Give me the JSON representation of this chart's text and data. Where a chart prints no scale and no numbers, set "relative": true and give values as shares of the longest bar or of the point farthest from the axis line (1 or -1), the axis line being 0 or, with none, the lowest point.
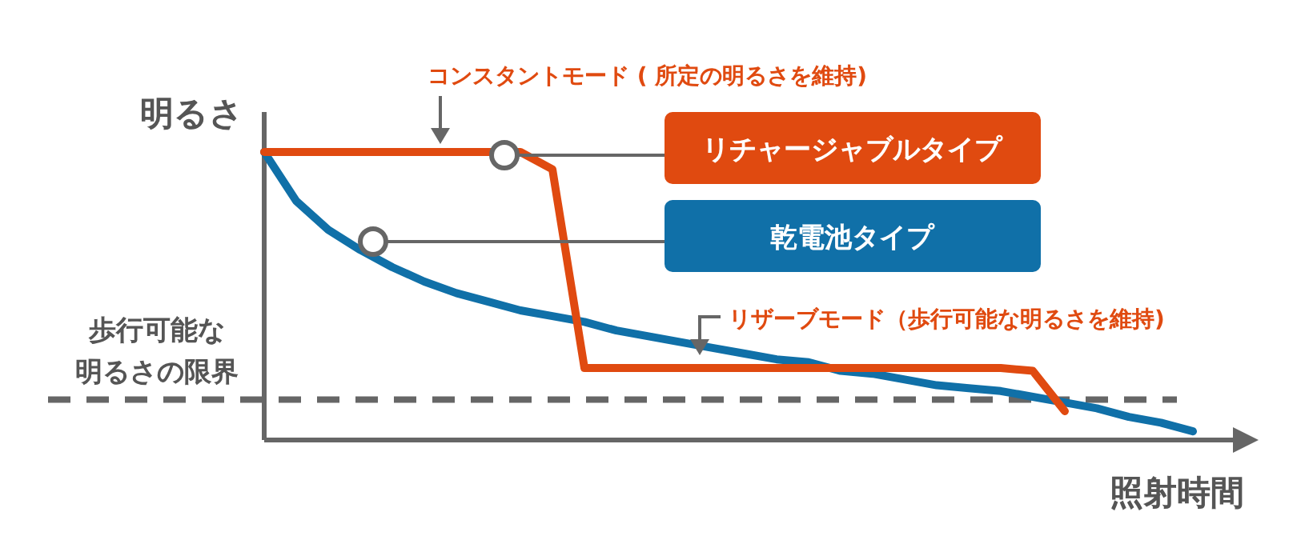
{
  "chart_data": {
    "type": "line",
    "relative": true,
    "ylabel": "明るさ",
    "xlabel": "照射時間",
    "legend": "top",
    "grid": false,
    "marker": "none",
    "line_style": "solid",
    "categories": [
      null,
      null,
      null,
      null,
      null,
      null,
      null,
      null,
      null,
      null,
      null,
      null,
      null,
      null,
      null,
      null,
      null,
      null,
      null,
      null,
      null,
      null,
      null,
      null,
      null,
      null,
      null,
      null,
      null,
      null
    ],
    "series": [
      {
        "name": "リチャージャブルタイプ",
        "color": "#e04a10",
        "values": [
          1,
          1,
          1,
          1,
          1,
          1,
          1,
          1,
          1,
          0.94,
          0.25,
          0.25,
          0.25,
          0.25,
          0.25,
          0.25,
          0.25,
          0.25,
          0.25,
          0.25,
          0.25,
          0.25,
          0.25,
          0.25,
          0.24,
          0.1,
          null,
          null,
          null,
          null
        ]
      },
      {
        "name": "乾電池タイプ",
        "color": "#1070a8",
        "values": [
          1,
          0.83,
          0.73,
          0.66,
          0.6,
          0.55,
          0.51,
          0.48,
          0.45,
          0.43,
          0.41,
          0.38,
          0.36,
          0.34,
          0.32,
          0.3,
          0.28,
          0.27,
          0.24,
          0.23,
          0.21,
          0.19,
          0.18,
          0.17,
          0.15,
          0.13,
          0.11,
          0.08,
          0.06,
          0.03
        ]
      }
    ],
    "ref_lines": [
      {
        "axis": "y",
        "value": 0.14,
        "label": "歩行可能な明るさの限界",
        "color": "#666666",
        "line_style": "dashed"
      }
    ],
    "annotations": [
      "コンスタントモード ( 所定の明るさを維持)",
      "リザーブモード（歩行可能な明るさを維持)"
    ]
  }
}
